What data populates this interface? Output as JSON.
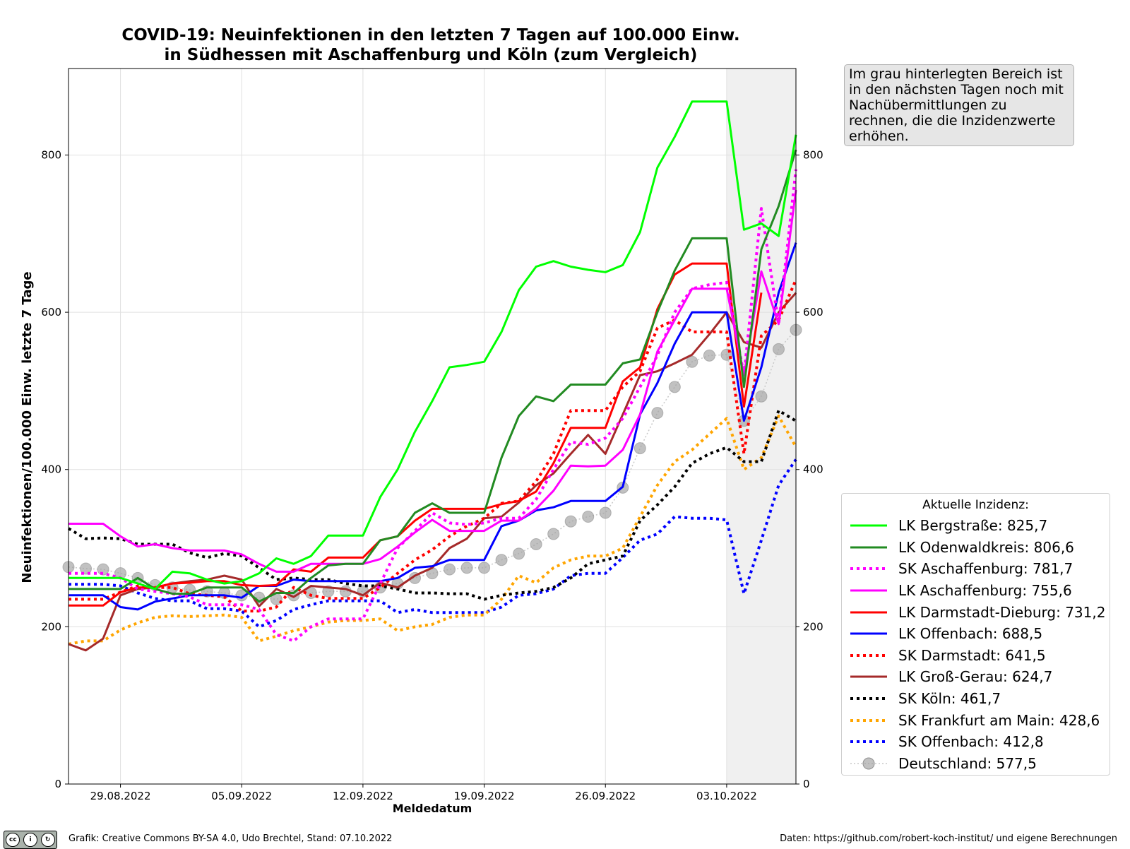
{
  "title_line1": "COVID-19: Neuinfektionen in den letzten 7 Tagen auf 100.000 Einw.",
  "title_line2": "in Südhessen mit Aschaffenburg und Köln (zum Vergleich)",
  "note": "Im grau hinterlegten Bereich ist in den nächsten Tagen noch mit Nachübermittlungen zu rechnen, die die Inzidenzwerte erhöhen.",
  "legend_title": "Aktuelle Inzidenz:",
  "footer_left": "Grafik: Creative Commons BY-SA 4.0, Udo Brechtel, Stand: 07.10.2022",
  "footer_right": "Daten: https://github.com/robert-koch-institut/ und eigene Berechnungen",
  "cc_badge": "cc BY SA",
  "chart_data": {
    "type": "line",
    "title": "COVID-19: Neuinfektionen in den letzten 7 Tagen auf 100.000 Einw. in Südhessen mit Aschaffenburg und Köln (zum Vergleich)",
    "xlabel": "Meldedatum",
    "ylabel": "Neuinfektionen/100.000 Einw. letzte 7 Tage",
    "ylim": [
      0,
      910
    ],
    "yticks": [
      0,
      200,
      400,
      600,
      800
    ],
    "x_start": "2022-08-26",
    "x_end": "2022-10-07",
    "x": [
      "26.08.",
      "27.08.",
      "28.08.",
      "29.08.",
      "30.08.",
      "31.08.",
      "01.09.",
      "02.09.",
      "03.09.",
      "04.09.",
      "05.09.",
      "06.09.",
      "07.09.",
      "08.09.",
      "09.09.",
      "10.09.",
      "11.09.",
      "12.09.",
      "13.09.",
      "14.09.",
      "15.09.",
      "16.09.",
      "17.09.",
      "18.09.",
      "19.09.",
      "20.09.",
      "21.09.",
      "22.09.",
      "23.09.",
      "24.09.",
      "25.09.",
      "26.09.",
      "27.09.",
      "28.09.",
      "29.09.",
      "30.09.",
      "01.10.",
      "02.10.",
      "03.10.",
      "04.10.",
      "05.10.",
      "06.10.",
      "07.10."
    ],
    "xticks": [
      {
        "label": "29.08.2022",
        "index": 3
      },
      {
        "label": "05.09.2022",
        "index": 10
      },
      {
        "label": "12.09.2022",
        "index": 17
      },
      {
        "label": "19.09.2022",
        "index": 24
      },
      {
        "label": "26.09.2022",
        "index": 31
      },
      {
        "label": "03.10.2022",
        "index": 38
      }
    ],
    "shaded_region": {
      "from_index": 38,
      "to_index": 42
    },
    "grid": true,
    "legend_position": "lower-right outside",
    "series": [
      {
        "name": "LK Bergstraße",
        "current": "825,7",
        "color": "#00ff00",
        "style": "solid",
        "values": [
          262,
          262,
          262,
          262,
          255,
          248,
          270,
          268,
          260,
          255,
          258,
          268,
          287,
          280,
          290,
          316,
          316,
          316,
          365,
          400,
          448,
          487,
          530,
          533,
          537,
          575,
          628,
          658,
          665,
          658,
          654,
          651,
          660,
          702,
          784,
          823,
          868,
          868,
          868,
          705,
          713,
          697,
          825.7
        ]
      },
      {
        "name": "LK Odenwaldkreis",
        "current": "806,6",
        "color": "#228b22",
        "style": "solid",
        "values": [
          248,
          248,
          248,
          248,
          262,
          248,
          242,
          242,
          250,
          250,
          250,
          232,
          243,
          243,
          262,
          278,
          280,
          280,
          310,
          315,
          345,
          357,
          345,
          345,
          345,
          415,
          468,
          493,
          487,
          508,
          508,
          508,
          535,
          540,
          600,
          653,
          694,
          694,
          694,
          505,
          680,
          735,
          806.6
        ]
      },
      {
        "name": "SK Aschaffenburg",
        "current": "781,7",
        "color": "#ff00ff",
        "style": "dotted",
        "values": [
          268,
          268,
          268,
          262,
          248,
          245,
          242,
          238,
          228,
          228,
          228,
          222,
          190,
          182,
          200,
          210,
          210,
          210,
          255,
          300,
          322,
          345,
          332,
          330,
          332,
          338,
          338,
          362,
          400,
          435,
          432,
          440,
          465,
          505,
          545,
          600,
          630,
          635,
          638,
          520,
          732,
          585,
          781.7
        ]
      },
      {
        "name": "LK Aschaffenburg",
        "current": "755,6",
        "color": "#ff00ff",
        "style": "solid",
        "values": [
          331,
          331,
          331,
          315,
          302,
          305,
          300,
          297,
          297,
          297,
          292,
          280,
          270,
          270,
          280,
          280,
          280,
          280,
          286,
          302,
          320,
          336,
          322,
          322,
          322,
          335,
          335,
          350,
          373,
          405,
          404,
          405,
          425,
          470,
          550,
          590,
          630,
          630,
          630,
          520,
          652,
          585,
          755.6
        ]
      },
      {
        "name": "LK Darmstadt-Dieburg",
        "current": "731,2",
        "color": "#ff0000",
        "style": "solid",
        "values": [
          227,
          227,
          227,
          244,
          250,
          250,
          255,
          256,
          258,
          258,
          253,
          252,
          253,
          273,
          270,
          288,
          288,
          288,
          310,
          315,
          335,
          350,
          350,
          350,
          350,
          356,
          360,
          372,
          408,
          453,
          453,
          453,
          512,
          530,
          604,
          648,
          662,
          662,
          662,
          480,
          625,
          null,
          731.2
        ]
      },
      {
        "name": "LK Offenbach",
        "current": "688,5",
        "color": "#0000ff",
        "style": "solid",
        "values": [
          240,
          240,
          240,
          225,
          222,
          232,
          236,
          240,
          240,
          240,
          237,
          252,
          252,
          260,
          258,
          258,
          258,
          258,
          258,
          262,
          275,
          277,
          285,
          285,
          285,
          328,
          335,
          348,
          352,
          360,
          360,
          360,
          378,
          470,
          510,
          560,
          600,
          600,
          600,
          462,
          530,
          625,
          688.5
        ]
      },
      {
        "name": "SK Darmstadt",
        "current": "641,5",
        "color": "#ff0000",
        "style": "dotted",
        "values": [
          235,
          235,
          235,
          244,
          252,
          250,
          250,
          242,
          240,
          238,
          220,
          220,
          225,
          250,
          240,
          236,
          236,
          236,
          250,
          268,
          285,
          298,
          315,
          328,
          338,
          357,
          360,
          385,
          420,
          475,
          475,
          475,
          505,
          525,
          580,
          590,
          575,
          575,
          575,
          420,
          570,
          590,
          641.5
        ]
      },
      {
        "name": "LK Groß-Gerau",
        "current": "624,7",
        "color": "#a52a2a",
        "style": "solid",
        "values": [
          178,
          170,
          185,
          240,
          248,
          250,
          255,
          258,
          260,
          265,
          260,
          226,
          248,
          238,
          252,
          250,
          248,
          240,
          256,
          250,
          265,
          275,
          300,
          312,
          338,
          340,
          358,
          380,
          395,
          420,
          444,
          420,
          470,
          520,
          525,
          535,
          546,
          572,
          600,
          562,
          555,
          600,
          624.7
        ]
      },
      {
        "name": "SK Köln",
        "current": "461,7",
        "color": "#000000",
        "style": "dotted",
        "values": [
          325,
          312,
          313,
          312,
          305,
          305,
          305,
          294,
          288,
          293,
          290,
          275,
          260,
          262,
          260,
          260,
          255,
          252,
          252,
          248,
          243,
          243,
          242,
          242,
          235,
          240,
          243,
          245,
          250,
          262,
          280,
          285,
          290,
          335,
          355,
          378,
          408,
          420,
          428,
          410,
          410,
          475,
          461.7
        ]
      },
      {
        "name": "SK Frankfurt am Main",
        "current": "428,6",
        "color": "#ffa500",
        "style": "dotted",
        "values": [
          178,
          182,
          182,
          196,
          205,
          212,
          214,
          213,
          214,
          215,
          212,
          182,
          188,
          195,
          200,
          206,
          208,
          208,
          210,
          195,
          200,
          203,
          212,
          215,
          215,
          235,
          265,
          256,
          275,
          285,
          290,
          290,
          300,
          340,
          380,
          410,
          425,
          445,
          465,
          400,
          415,
          468,
          428.6
        ]
      },
      {
        "name": "SK Offenbach",
        "current": "412,8",
        "color": "#0000ff",
        "style": "dotted",
        "values": [
          254,
          254,
          254,
          252,
          243,
          236,
          233,
          233,
          223,
          223,
          220,
          200,
          208,
          222,
          228,
          233,
          233,
          233,
          233,
          218,
          222,
          218,
          218,
          218,
          218,
          225,
          240,
          242,
          248,
          265,
          268,
          268,
          288,
          310,
          318,
          340,
          338,
          338,
          336,
          242,
          310,
          380,
          412.8
        ]
      },
      {
        "name": "Deutschland",
        "current": "577,5",
        "color": "#a0a0a0",
        "style": "marker",
        "values": [
          276,
          274,
          273,
          268,
          262,
          253,
          250,
          247,
          245,
          243,
          240,
          237,
          235,
          240,
          243,
          245,
          245,
          245,
          250,
          255,
          262,
          268,
          273,
          275,
          275,
          285,
          293,
          305,
          318,
          334,
          340,
          345,
          377,
          427,
          472,
          505,
          537,
          545,
          546,
          462,
          493,
          553,
          577.5
        ]
      }
    ]
  }
}
